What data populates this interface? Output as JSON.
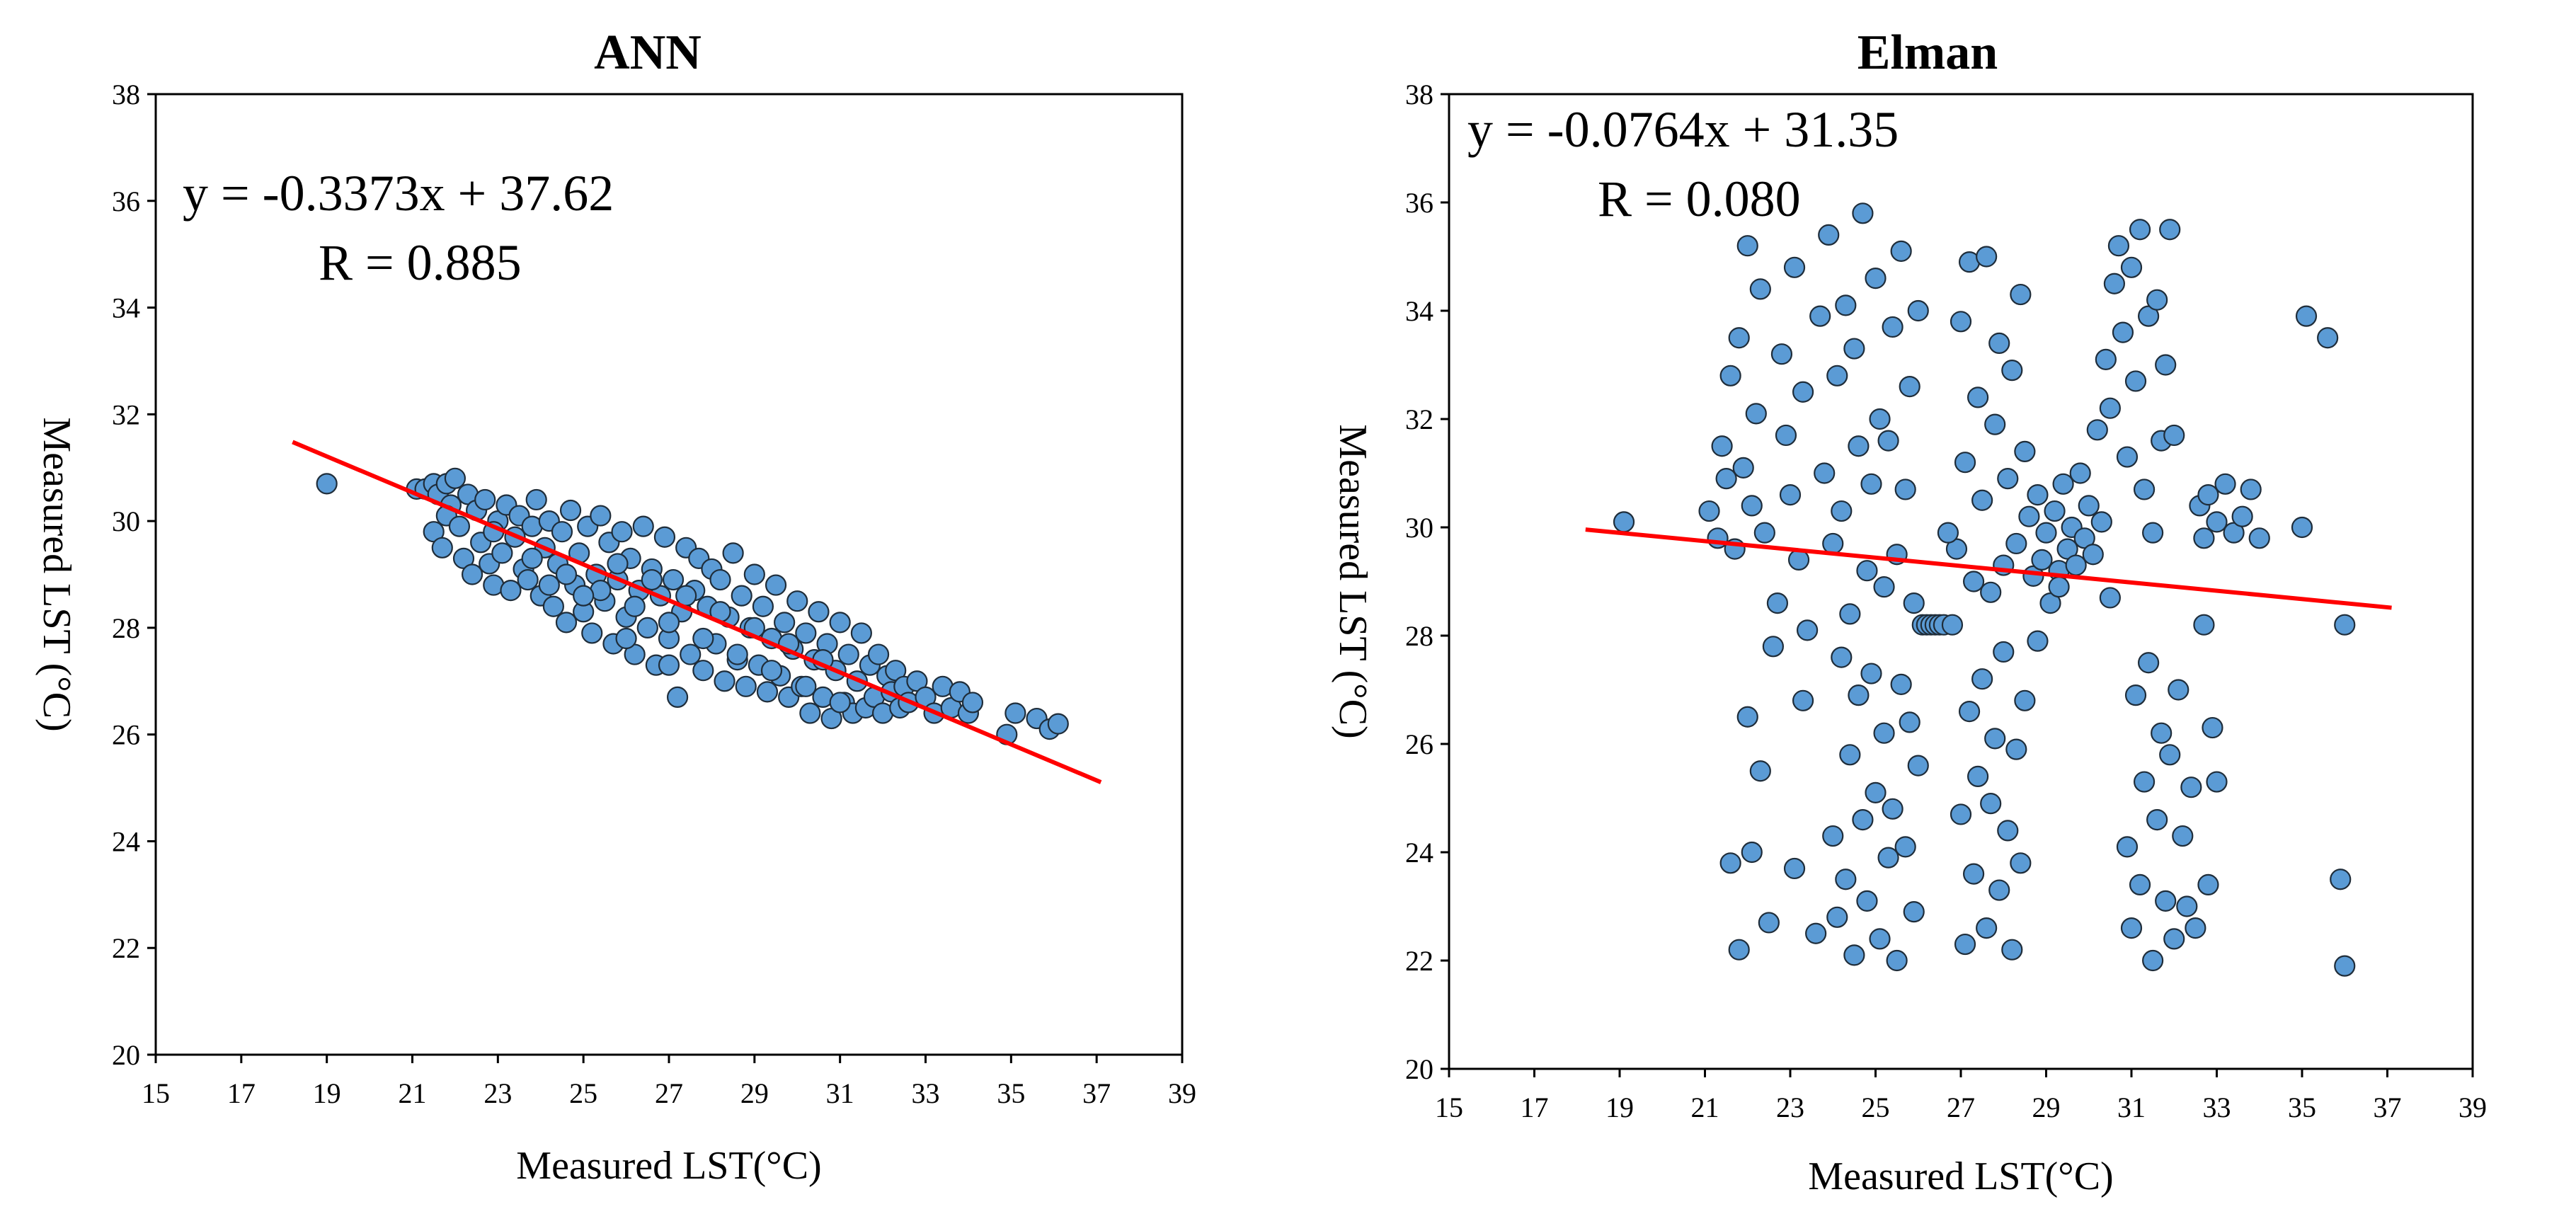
{
  "chart_data": [
    {
      "id": "ann",
      "type": "scatter",
      "title": "ANN",
      "xlabel": "Measured LST(°C)",
      "ylabel": "Measured LST (°C)",
      "xlim": [
        15,
        39
      ],
      "ylim": [
        20,
        38
      ],
      "xticks": [
        15,
        17,
        19,
        21,
        23,
        25,
        27,
        29,
        31,
        33,
        35,
        37,
        39
      ],
      "yticks": [
        20,
        22,
        24,
        26,
        28,
        30,
        32,
        34,
        36,
        38
      ],
      "equation": "y = -0.3373x + 37.62",
      "r_label": "R = 0.885",
      "fit": {
        "slope": -0.3373,
        "intercept": 37.62,
        "x_range": [
          18.2,
          37.1
        ]
      },
      "point_color": "#5b9bd5",
      "line_color": "#ff0000",
      "points": [
        [
          19.0,
          30.7
        ],
        [
          21.1,
          30.6
        ],
        [
          21.3,
          30.6
        ],
        [
          21.5,
          30.7
        ],
        [
          21.6,
          30.5
        ],
        [
          21.8,
          30.7
        ],
        [
          21.9,
          30.3
        ],
        [
          22.0,
          30.8
        ],
        [
          21.5,
          29.8
        ],
        [
          21.7,
          29.5
        ],
        [
          21.8,
          30.1
        ],
        [
          22.1,
          29.9
        ],
        [
          22.2,
          29.3
        ],
        [
          22.3,
          30.5
        ],
        [
          22.4,
          29.0
        ],
        [
          22.5,
          30.2
        ],
        [
          22.6,
          29.6
        ],
        [
          22.7,
          30.4
        ],
        [
          22.8,
          29.2
        ],
        [
          22.9,
          28.8
        ],
        [
          23.0,
          30.0
        ],
        [
          23.1,
          29.4
        ],
        [
          23.2,
          30.3
        ],
        [
          23.3,
          28.7
        ],
        [
          23.4,
          29.7
        ],
        [
          23.5,
          30.1
        ],
        [
          23.6,
          29.1
        ],
        [
          23.7,
          28.9
        ],
        [
          23.8,
          29.9
        ],
        [
          23.9,
          30.4
        ],
        [
          24.0,
          28.6
        ],
        [
          24.1,
          29.5
        ],
        [
          24.2,
          30.0
        ],
        [
          24.3,
          28.4
        ],
        [
          24.4,
          29.2
        ],
        [
          24.5,
          29.8
        ],
        [
          24.6,
          28.1
        ],
        [
          24.7,
          30.2
        ],
        [
          24.8,
          28.8
        ],
        [
          24.9,
          29.4
        ],
        [
          25.0,
          28.3
        ],
        [
          25.1,
          29.9
        ],
        [
          25.2,
          27.9
        ],
        [
          25.3,
          29.0
        ],
        [
          25.4,
          30.1
        ],
        [
          25.5,
          28.5
        ],
        [
          25.6,
          29.6
        ],
        [
          25.7,
          27.7
        ],
        [
          25.8,
          28.9
        ],
        [
          25.9,
          29.8
        ],
        [
          26.0,
          28.2
        ],
        [
          26.1,
          29.3
        ],
        [
          26.2,
          27.5
        ],
        [
          26.3,
          28.7
        ],
        [
          26.4,
          29.9
        ],
        [
          26.5,
          28.0
        ],
        [
          26.6,
          29.1
        ],
        [
          26.7,
          27.3
        ],
        [
          26.8,
          28.6
        ],
        [
          26.9,
          29.7
        ],
        [
          27.0,
          27.8
        ],
        [
          27.1,
          28.9
        ],
        [
          27.2,
          26.7
        ],
        [
          27.3,
          28.3
        ],
        [
          27.4,
          29.5
        ],
        [
          27.5,
          27.5
        ],
        [
          27.6,
          28.7
        ],
        [
          27.7,
          29.3
        ],
        [
          27.8,
          27.2
        ],
        [
          27.9,
          28.4
        ],
        [
          28.0,
          29.1
        ],
        [
          28.1,
          27.7
        ],
        [
          28.2,
          28.9
        ],
        [
          28.3,
          27.0
        ],
        [
          28.4,
          28.2
        ],
        [
          28.5,
          29.4
        ],
        [
          28.6,
          27.4
        ],
        [
          28.7,
          28.6
        ],
        [
          28.8,
          26.9
        ],
        [
          28.9,
          28.0
        ],
        [
          29.0,
          29.0
        ],
        [
          29.1,
          27.3
        ],
        [
          29.2,
          28.4
        ],
        [
          29.3,
          26.8
        ],
        [
          29.4,
          27.8
        ],
        [
          29.5,
          28.8
        ],
        [
          29.6,
          27.1
        ],
        [
          29.7,
          28.1
        ],
        [
          29.8,
          26.7
        ],
        [
          29.9,
          27.6
        ],
        [
          30.0,
          28.5
        ],
        [
          30.1,
          26.9
        ],
        [
          30.2,
          27.9
        ],
        [
          30.3,
          26.4
        ],
        [
          30.4,
          27.4
        ],
        [
          30.5,
          28.3
        ],
        [
          30.6,
          26.7
        ],
        [
          30.7,
          27.7
        ],
        [
          30.8,
          26.3
        ],
        [
          30.9,
          27.2
        ],
        [
          31.0,
          28.1
        ],
        [
          31.1,
          26.6
        ],
        [
          31.2,
          27.5
        ],
        [
          31.3,
          26.4
        ],
        [
          31.4,
          27.0
        ],
        [
          31.5,
          27.9
        ],
        [
          31.6,
          26.5
        ],
        [
          31.7,
          27.3
        ],
        [
          31.8,
          26.7
        ],
        [
          31.9,
          27.5
        ],
        [
          32.0,
          26.4
        ],
        [
          32.1,
          27.1
        ],
        [
          32.2,
          26.8
        ],
        [
          32.3,
          27.2
        ],
        [
          32.4,
          26.5
        ],
        [
          32.5,
          26.9
        ],
        [
          32.6,
          26.6
        ],
        [
          32.8,
          27.0
        ],
        [
          33.0,
          26.7
        ],
        [
          33.2,
          26.4
        ],
        [
          33.4,
          26.9
        ],
        [
          33.6,
          26.5
        ],
        [
          33.8,
          26.8
        ],
        [
          34.0,
          26.4
        ],
        [
          34.1,
          26.6
        ],
        [
          34.9,
          26.0
        ],
        [
          35.1,
          26.4
        ],
        [
          35.6,
          26.3
        ],
        [
          35.9,
          26.1
        ],
        [
          36.1,
          26.2
        ],
        [
          23.8,
          29.3
        ],
        [
          24.6,
          29.0
        ],
        [
          25.4,
          28.7
        ],
        [
          26.2,
          28.4
        ],
        [
          27.0,
          28.1
        ],
        [
          27.8,
          27.8
        ],
        [
          28.6,
          27.5
        ],
        [
          29.4,
          27.2
        ],
        [
          30.2,
          26.9
        ],
        [
          31.0,
          26.6
        ],
        [
          22.9,
          29.8
        ],
        [
          25.8,
          29.2
        ],
        [
          26.6,
          28.9
        ],
        [
          27.4,
          28.6
        ],
        [
          28.2,
          28.3
        ],
        [
          29.0,
          28.0
        ],
        [
          29.8,
          27.7
        ],
        [
          30.6,
          27.4
        ],
        [
          24.2,
          28.8
        ],
        [
          25.0,
          28.6
        ],
        [
          26.0,
          27.8
        ],
        [
          27.0,
          27.3
        ]
      ]
    },
    {
      "id": "elman",
      "type": "scatter",
      "title": "Elman",
      "xlabel": "Measured LST(°C)",
      "ylabel": "Measured LST (°C)",
      "xlim": [
        15,
        39
      ],
      "ylim": [
        20,
        38
      ],
      "xticks": [
        15,
        17,
        19,
        21,
        23,
        25,
        27,
        29,
        31,
        33,
        35,
        37,
        39
      ],
      "yticks": [
        20,
        22,
        24,
        26,
        28,
        30,
        32,
        34,
        36,
        38
      ],
      "equation": "y = -0.0764x + 31.35",
      "r_label": "R = 0.080",
      "fit": {
        "slope": -0.0764,
        "intercept": 31.35,
        "x_range": [
          18.2,
          37.1
        ]
      },
      "point_color": "#5b9bd5",
      "line_color": "#ff0000",
      "points": [
        [
          19.1,
          30.1
        ],
        [
          21.1,
          30.3
        ],
        [
          21.3,
          29.8
        ],
        [
          21.4,
          31.5
        ],
        [
          21.5,
          30.9
        ],
        [
          21.6,
          32.8
        ],
        [
          21.7,
          29.6
        ],
        [
          21.8,
          33.5
        ],
        [
          21.9,
          31.1
        ],
        [
          22.0,
          35.2
        ],
        [
          22.1,
          30.4
        ],
        [
          22.2,
          32.1
        ],
        [
          22.3,
          34.4
        ],
        [
          22.4,
          29.9
        ],
        [
          21.6,
          23.8
        ],
        [
          21.8,
          22.2
        ],
        [
          22.0,
          26.5
        ],
        [
          22.1,
          24.0
        ],
        [
          22.3,
          25.5
        ],
        [
          22.5,
          22.7
        ],
        [
          22.6,
          27.8
        ],
        [
          22.7,
          28.6
        ],
        [
          22.8,
          33.2
        ],
        [
          22.9,
          31.7
        ],
        [
          23.0,
          30.6
        ],
        [
          23.1,
          34.8
        ],
        [
          23.2,
          29.4
        ],
        [
          23.3,
          32.5
        ],
        [
          23.1,
          23.7
        ],
        [
          23.3,
          26.8
        ],
        [
          23.4,
          28.1
        ],
        [
          23.6,
          22.5
        ],
        [
          23.7,
          33.9
        ],
        [
          23.8,
          31.0
        ],
        [
          23.9,
          35.4
        ],
        [
          24.0,
          29.7
        ],
        [
          24.1,
          32.8
        ],
        [
          24.2,
          30.3
        ],
        [
          24.3,
          34.1
        ],
        [
          24.4,
          28.4
        ],
        [
          24.5,
          33.3
        ],
        [
          24.6,
          31.5
        ],
        [
          24.7,
          35.8
        ],
        [
          24.8,
          29.2
        ],
        [
          24.9,
          30.8
        ],
        [
          25.0,
          34.6
        ],
        [
          25.1,
          32.0
        ],
        [
          25.2,
          28.9
        ],
        [
          24.0,
          24.3
        ],
        [
          24.1,
          22.8
        ],
        [
          24.2,
          27.6
        ],
        [
          24.3,
          23.5
        ],
        [
          24.4,
          25.8
        ],
        [
          24.5,
          22.1
        ],
        [
          24.6,
          26.9
        ],
        [
          24.7,
          24.6
        ],
        [
          24.8,
          23.1
        ],
        [
          24.9,
          27.3
        ],
        [
          25.0,
          25.1
        ],
        [
          25.1,
          22.4
        ],
        [
          25.2,
          26.2
        ],
        [
          25.3,
          23.9
        ],
        [
          25.4,
          24.8
        ],
        [
          25.5,
          22.0
        ],
        [
          25.3,
          31.6
        ],
        [
          25.4,
          33.7
        ],
        [
          25.5,
          29.5
        ],
        [
          25.6,
          35.1
        ],
        [
          25.7,
          30.7
        ],
        [
          25.8,
          32.6
        ],
        [
          25.9,
          28.6
        ],
        [
          26.0,
          34.0
        ],
        [
          25.6,
          27.1
        ],
        [
          25.7,
          24.1
        ],
        [
          25.8,
          26.4
        ],
        [
          25.9,
          22.9
        ],
        [
          26.0,
          25.6
        ],
        [
          26.1,
          28.2
        ],
        [
          26.2,
          28.2
        ],
        [
          26.3,
          28.2
        ],
        [
          26.4,
          28.2
        ],
        [
          26.5,
          28.2
        ],
        [
          26.6,
          28.2
        ],
        [
          26.8,
          28.2
        ],
        [
          26.9,
          29.6
        ],
        [
          27.0,
          33.8
        ],
        [
          27.1,
          31.2
        ],
        [
          27.2,
          34.9
        ],
        [
          27.3,
          29.0
        ],
        [
          27.4,
          32.4
        ],
        [
          27.5,
          30.5
        ],
        [
          27.6,
          35.0
        ],
        [
          27.7,
          28.8
        ],
        [
          27.8,
          31.9
        ],
        [
          27.9,
          33.4
        ],
        [
          28.0,
          29.3
        ],
        [
          27.0,
          24.7
        ],
        [
          27.1,
          22.3
        ],
        [
          27.2,
          26.6
        ],
        [
          27.3,
          23.6
        ],
        [
          27.4,
          25.4
        ],
        [
          27.5,
          27.2
        ],
        [
          27.6,
          22.6
        ],
        [
          27.7,
          24.9
        ],
        [
          27.8,
          26.1
        ],
        [
          27.9,
          23.3
        ],
        [
          28.0,
          27.7
        ],
        [
          28.1,
          24.4
        ],
        [
          28.2,
          22.2
        ],
        [
          28.3,
          25.9
        ],
        [
          28.4,
          23.8
        ],
        [
          28.5,
          26.8
        ],
        [
          28.1,
          30.9
        ],
        [
          28.2,
          32.9
        ],
        [
          28.3,
          29.7
        ],
        [
          28.4,
          34.3
        ],
        [
          28.5,
          31.4
        ],
        [
          28.6,
          30.2
        ],
        [
          28.7,
          29.1
        ],
        [
          28.8,
          30.6
        ],
        [
          28.9,
          29.4
        ],
        [
          29.0,
          29.9
        ],
        [
          29.1,
          28.6
        ],
        [
          29.2,
          30.3
        ],
        [
          29.3,
          29.2
        ],
        [
          29.4,
          30.8
        ],
        [
          29.5,
          29.6
        ],
        [
          29.6,
          30.0
        ],
        [
          29.7,
          29.3
        ],
        [
          29.8,
          31.0
        ],
        [
          29.9,
          29.8
        ],
        [
          30.0,
          30.4
        ],
        [
          30.1,
          29.5
        ],
        [
          30.2,
          31.8
        ],
        [
          30.3,
          30.1
        ],
        [
          30.4,
          33.1
        ],
        [
          30.5,
          32.2
        ],
        [
          30.6,
          34.5
        ],
        [
          30.7,
          35.2
        ],
        [
          30.8,
          33.6
        ],
        [
          30.9,
          31.3
        ],
        [
          31.0,
          34.8
        ],
        [
          31.1,
          32.7
        ],
        [
          31.2,
          35.5
        ],
        [
          31.3,
          30.7
        ],
        [
          31.4,
          33.9
        ],
        [
          31.5,
          29.9
        ],
        [
          31.6,
          34.2
        ],
        [
          31.7,
          31.6
        ],
        [
          31.8,
          33.0
        ],
        [
          31.9,
          35.5
        ],
        [
          32.0,
          31.7
        ],
        [
          30.9,
          24.1
        ],
        [
          31.0,
          22.6
        ],
        [
          31.1,
          26.9
        ],
        [
          31.2,
          23.4
        ],
        [
          31.3,
          25.3
        ],
        [
          31.4,
          27.5
        ],
        [
          31.5,
          22.0
        ],
        [
          31.6,
          24.6
        ],
        [
          31.7,
          26.2
        ],
        [
          31.8,
          23.1
        ],
        [
          31.9,
          25.8
        ],
        [
          32.0,
          22.4
        ],
        [
          32.1,
          27.0
        ],
        [
          32.2,
          24.3
        ],
        [
          32.3,
          23.0
        ],
        [
          32.4,
          25.2
        ],
        [
          32.6,
          30.4
        ],
        [
          32.7,
          29.8
        ],
        [
          32.8,
          30.6
        ],
        [
          33.0,
          30.1
        ],
        [
          33.2,
          30.8
        ],
        [
          33.4,
          29.9
        ],
        [
          33.6,
          30.2
        ],
        [
          33.8,
          30.7
        ],
        [
          34.0,
          29.8
        ],
        [
          32.7,
          28.2
        ],
        [
          32.9,
          26.3
        ],
        [
          33.0,
          25.3
        ],
        [
          32.8,
          23.4
        ],
        [
          35.0,
          30.0
        ],
        [
          35.1,
          33.9
        ],
        [
          35.6,
          33.5
        ],
        [
          36.0,
          28.2
        ],
        [
          35.9,
          23.5
        ],
        [
          36.0,
          21.9
        ],
        [
          32.5,
          22.6
        ],
        [
          26.7,
          29.9
        ],
        [
          28.8,
          27.9
        ],
        [
          29.3,
          28.9
        ],
        [
          30.5,
          28.7
        ]
      ]
    }
  ]
}
